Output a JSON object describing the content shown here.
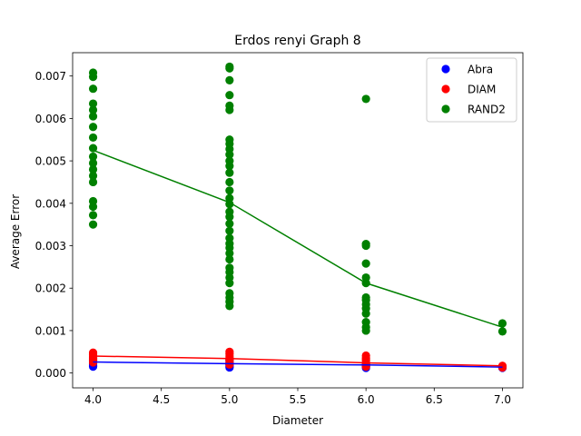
{
  "chart_data": {
    "type": "scatter",
    "title": "Erdos renyi Graph 8",
    "xlabel": "Diameter",
    "ylabel": "Average Error",
    "xlim": [
      3.85,
      7.15
    ],
    "ylim": [
      -0.00035,
      0.00755
    ],
    "xticks": [
      "4.0",
      "4.5",
      "5.0",
      "5.5",
      "6.0",
      "6.5",
      "7.0"
    ],
    "yticks": [
      "0.000",
      "0.001",
      "0.002",
      "0.003",
      "0.004",
      "0.005",
      "0.006",
      "0.007"
    ],
    "legend_position": "top-right",
    "grid": false,
    "series": [
      {
        "name": "Abra",
        "color": "#0000ff",
        "points": [
          [
            4.0,
            0.00015
          ],
          [
            4.0,
            0.00018
          ],
          [
            4.0,
            0.00021
          ],
          [
            4.0,
            0.00024
          ],
          [
            4.0,
            0.00028
          ],
          [
            4.0,
            0.00032
          ],
          [
            4.0,
            0.00036
          ],
          [
            5.0,
            0.00013
          ],
          [
            5.0,
            0.00016
          ],
          [
            5.0,
            0.00019
          ],
          [
            5.0,
            0.00022
          ],
          [
            5.0,
            0.00025
          ],
          [
            5.0,
            0.00029
          ],
          [
            5.0,
            0.00032
          ],
          [
            6.0,
            0.00012
          ],
          [
            6.0,
            0.00015
          ],
          [
            6.0,
            0.00018
          ],
          [
            6.0,
            0.00021
          ],
          [
            6.0,
            0.00024
          ],
          [
            7.0,
            0.00012
          ],
          [
            7.0,
            0.00015
          ]
        ],
        "mean_line": [
          [
            4.0,
            0.00026
          ],
          [
            5.0,
            0.00022
          ],
          [
            6.0,
            0.00019
          ],
          [
            7.0,
            0.00014
          ]
        ]
      },
      {
        "name": "DIAM",
        "color": "#ff0000",
        "points": [
          [
            4.0,
            0.00025
          ],
          [
            4.0,
            0.0003
          ],
          [
            4.0,
            0.00035
          ],
          [
            4.0,
            0.0004
          ],
          [
            4.0,
            0.00044
          ],
          [
            4.0,
            0.00048
          ],
          [
            5.0,
            0.0002
          ],
          [
            5.0,
            0.00025
          ],
          [
            5.0,
            0.0003
          ],
          [
            5.0,
            0.00035
          ],
          [
            5.0,
            0.0004
          ],
          [
            5.0,
            0.00045
          ],
          [
            5.0,
            0.0005
          ],
          [
            6.0,
            0.00015
          ],
          [
            6.0,
            0.0002
          ],
          [
            6.0,
            0.00025
          ],
          [
            6.0,
            0.0003
          ],
          [
            6.0,
            0.00035
          ],
          [
            6.0,
            0.00041
          ],
          [
            7.0,
            0.00013
          ],
          [
            7.0,
            0.00017
          ]
        ],
        "mean_line": [
          [
            4.0,
            0.0004
          ],
          [
            5.0,
            0.00034
          ],
          [
            6.0,
            0.00024
          ],
          [
            7.0,
            0.00017
          ]
        ]
      },
      {
        "name": "RAND2",
        "color": "#008000",
        "points": [
          [
            4.0,
            0.0035
          ],
          [
            4.0,
            0.00372
          ],
          [
            4.0,
            0.00392
          ],
          [
            4.0,
            0.00405
          ],
          [
            4.0,
            0.0045
          ],
          [
            4.0,
            0.00465
          ],
          [
            4.0,
            0.0048
          ],
          [
            4.0,
            0.00495
          ],
          [
            4.0,
            0.0051
          ],
          [
            4.0,
            0.0053
          ],
          [
            4.0,
            0.00555
          ],
          [
            4.0,
            0.0058
          ],
          [
            4.0,
            0.00605
          ],
          [
            4.0,
            0.0062
          ],
          [
            4.0,
            0.00635
          ],
          [
            4.0,
            0.0067
          ],
          [
            4.0,
            0.00698
          ],
          [
            4.0,
            0.00708
          ],
          [
            5.0,
            0.00158
          ],
          [
            5.0,
            0.00168
          ],
          [
            5.0,
            0.00178
          ],
          [
            5.0,
            0.00188
          ],
          [
            5.0,
            0.00212
          ],
          [
            5.0,
            0.00225
          ],
          [
            5.0,
            0.00238
          ],
          [
            5.0,
            0.00248
          ],
          [
            5.0,
            0.00268
          ],
          [
            5.0,
            0.00282
          ],
          [
            5.0,
            0.00295
          ],
          [
            5.0,
            0.00305
          ],
          [
            5.0,
            0.00318
          ],
          [
            5.0,
            0.00335
          ],
          [
            5.0,
            0.00352
          ],
          [
            5.0,
            0.00368
          ],
          [
            5.0,
            0.0038
          ],
          [
            5.0,
            0.00398
          ],
          [
            5.0,
            0.00412
          ],
          [
            5.0,
            0.0043
          ],
          [
            5.0,
            0.0045
          ],
          [
            5.0,
            0.00472
          ],
          [
            5.0,
            0.00488
          ],
          [
            5.0,
            0.005
          ],
          [
            5.0,
            0.00515
          ],
          [
            5.0,
            0.00528
          ],
          [
            5.0,
            0.0054
          ],
          [
            5.0,
            0.0055
          ],
          [
            5.0,
            0.0062
          ],
          [
            5.0,
            0.0063
          ],
          [
            5.0,
            0.00655
          ],
          [
            5.0,
            0.0069
          ],
          [
            5.0,
            0.00718
          ],
          [
            5.0,
            0.00722
          ],
          [
            6.0,
            0.001
          ],
          [
            6.0,
            0.00108
          ],
          [
            6.0,
            0.0012
          ],
          [
            6.0,
            0.0014
          ],
          [
            6.0,
            0.00152
          ],
          [
            6.0,
            0.00162
          ],
          [
            6.0,
            0.00172
          ],
          [
            6.0,
            0.00178
          ],
          [
            6.0,
            0.00212
          ],
          [
            6.0,
            0.00225
          ],
          [
            6.0,
            0.00258
          ],
          [
            6.0,
            0.003
          ],
          [
            6.0,
            0.00304
          ],
          [
            6.0,
            0.00646
          ],
          [
            7.0,
            0.00098
          ],
          [
            7.0,
            0.00117
          ]
        ],
        "mean_line": [
          [
            4.0,
            0.00525
          ],
          [
            5.0,
            0.00402
          ],
          [
            6.0,
            0.00212
          ],
          [
            7.0,
            0.00108
          ]
        ]
      }
    ]
  }
}
